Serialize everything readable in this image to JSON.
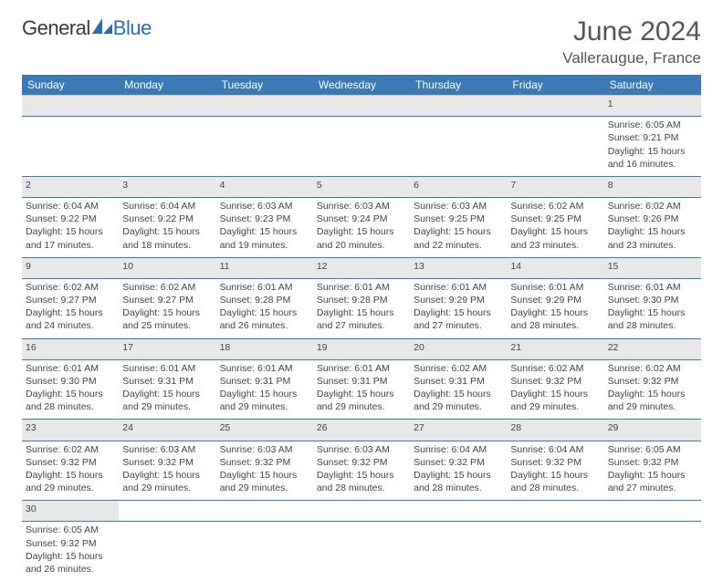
{
  "brand": {
    "part1": "General",
    "part2": "Blue"
  },
  "title": "June 2024",
  "location": "Valleraugue, France",
  "colors": {
    "header_bg": "#3b7ab5",
    "header_text": "#ffffff",
    "daynum_bg": "#e8e8e8",
    "row_border": "#3b7ab5",
    "logo_blue": "#2e6ca8"
  },
  "weekdays": [
    "Sunday",
    "Monday",
    "Tuesday",
    "Wednesday",
    "Thursday",
    "Friday",
    "Saturday"
  ],
  "weeks": [
    [
      null,
      null,
      null,
      null,
      null,
      null,
      {
        "n": "1",
        "sr": "6:05 AM",
        "ss": "9:21 PM",
        "dl": "15 hours and 16 minutes."
      }
    ],
    [
      {
        "n": "2",
        "sr": "6:04 AM",
        "ss": "9:22 PM",
        "dl": "15 hours and 17 minutes."
      },
      {
        "n": "3",
        "sr": "6:04 AM",
        "ss": "9:22 PM",
        "dl": "15 hours and 18 minutes."
      },
      {
        "n": "4",
        "sr": "6:03 AM",
        "ss": "9:23 PM",
        "dl": "15 hours and 19 minutes."
      },
      {
        "n": "5",
        "sr": "6:03 AM",
        "ss": "9:24 PM",
        "dl": "15 hours and 20 minutes."
      },
      {
        "n": "6",
        "sr": "6:03 AM",
        "ss": "9:25 PM",
        "dl": "15 hours and 22 minutes."
      },
      {
        "n": "7",
        "sr": "6:02 AM",
        "ss": "9:25 PM",
        "dl": "15 hours and 23 minutes."
      },
      {
        "n": "8",
        "sr": "6:02 AM",
        "ss": "9:26 PM",
        "dl": "15 hours and 23 minutes."
      }
    ],
    [
      {
        "n": "9",
        "sr": "6:02 AM",
        "ss": "9:27 PM",
        "dl": "15 hours and 24 minutes."
      },
      {
        "n": "10",
        "sr": "6:02 AM",
        "ss": "9:27 PM",
        "dl": "15 hours and 25 minutes."
      },
      {
        "n": "11",
        "sr": "6:01 AM",
        "ss": "9:28 PM",
        "dl": "15 hours and 26 minutes."
      },
      {
        "n": "12",
        "sr": "6:01 AM",
        "ss": "9:28 PM",
        "dl": "15 hours and 27 minutes."
      },
      {
        "n": "13",
        "sr": "6:01 AM",
        "ss": "9:29 PM",
        "dl": "15 hours and 27 minutes."
      },
      {
        "n": "14",
        "sr": "6:01 AM",
        "ss": "9:29 PM",
        "dl": "15 hours and 28 minutes."
      },
      {
        "n": "15",
        "sr": "6:01 AM",
        "ss": "9:30 PM",
        "dl": "15 hours and 28 minutes."
      }
    ],
    [
      {
        "n": "16",
        "sr": "6:01 AM",
        "ss": "9:30 PM",
        "dl": "15 hours and 28 minutes."
      },
      {
        "n": "17",
        "sr": "6:01 AM",
        "ss": "9:31 PM",
        "dl": "15 hours and 29 minutes."
      },
      {
        "n": "18",
        "sr": "6:01 AM",
        "ss": "9:31 PM",
        "dl": "15 hours and 29 minutes."
      },
      {
        "n": "19",
        "sr": "6:01 AM",
        "ss": "9:31 PM",
        "dl": "15 hours and 29 minutes."
      },
      {
        "n": "20",
        "sr": "6:02 AM",
        "ss": "9:31 PM",
        "dl": "15 hours and 29 minutes."
      },
      {
        "n": "21",
        "sr": "6:02 AM",
        "ss": "9:32 PM",
        "dl": "15 hours and 29 minutes."
      },
      {
        "n": "22",
        "sr": "6:02 AM",
        "ss": "9:32 PM",
        "dl": "15 hours and 29 minutes."
      }
    ],
    [
      {
        "n": "23",
        "sr": "6:02 AM",
        "ss": "9:32 PM",
        "dl": "15 hours and 29 minutes."
      },
      {
        "n": "24",
        "sr": "6:03 AM",
        "ss": "9:32 PM",
        "dl": "15 hours and 29 minutes."
      },
      {
        "n": "25",
        "sr": "6:03 AM",
        "ss": "9:32 PM",
        "dl": "15 hours and 29 minutes."
      },
      {
        "n": "26",
        "sr": "6:03 AM",
        "ss": "9:32 PM",
        "dl": "15 hours and 28 minutes."
      },
      {
        "n": "27",
        "sr": "6:04 AM",
        "ss": "9:32 PM",
        "dl": "15 hours and 28 minutes."
      },
      {
        "n": "28",
        "sr": "6:04 AM",
        "ss": "9:32 PM",
        "dl": "15 hours and 28 minutes."
      },
      {
        "n": "29",
        "sr": "6:05 AM",
        "ss": "9:32 PM",
        "dl": "15 hours and 27 minutes."
      }
    ],
    [
      {
        "n": "30",
        "sr": "6:05 AM",
        "ss": "9:32 PM",
        "dl": "15 hours and 26 minutes."
      },
      null,
      null,
      null,
      null,
      null,
      null
    ]
  ],
  "labels": {
    "sunrise": "Sunrise: ",
    "sunset": "Sunset: ",
    "daylight": "Daylight: "
  }
}
